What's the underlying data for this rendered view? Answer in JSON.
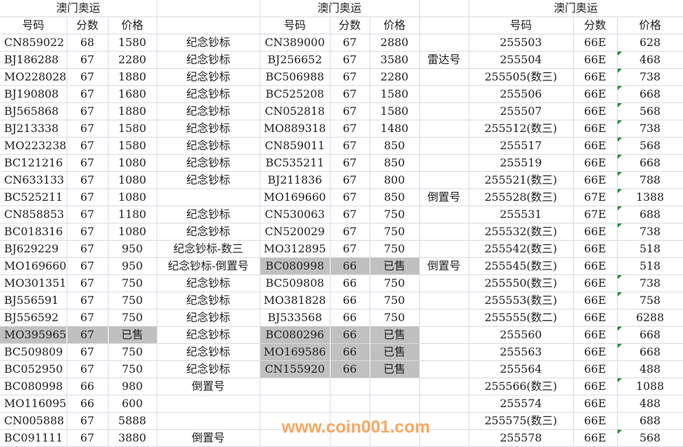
{
  "colors": {
    "sold_fill": "#c0c0c0",
    "gridline": "#d5dae4",
    "text_flag": "#1e8c2a",
    "watermark": "#f5963c"
  },
  "titles": [
    "澳门奥运",
    "澳门奥运",
    "澳门奥运"
  ],
  "headers": [
    "号码",
    "分数",
    "价格",
    "",
    "号码",
    "分数",
    "价格",
    "",
    "号码",
    "分数",
    "价格"
  ],
  "rows": [
    {
      "cells": [
        "CN859022",
        "68",
        "1580",
        "纪念钞标",
        "CN389000",
        "67",
        "2880",
        "",
        "255503",
        "66E",
        "628"
      ],
      "gray": [],
      "flag": false
    },
    {
      "cells": [
        "BJ186288",
        "67",
        "2280",
        "纪念钞标",
        "BJ256652",
        "67",
        "3580",
        "雷达号",
        "255504",
        "66E",
        "468"
      ],
      "gray": [],
      "flag": true
    },
    {
      "cells": [
        "MO228028",
        "67",
        "1880",
        "纪念钞标",
        "BC506988",
        "67",
        "2280",
        "",
        "255505(数三)",
        "66E",
        "738"
      ],
      "gray": [],
      "flag": true
    },
    {
      "cells": [
        "BJ190808",
        "67",
        "1680",
        "纪念钞标",
        "BC525208",
        "67",
        "1580",
        "",
        "255506",
        "66E",
        "668"
      ],
      "gray": [],
      "flag": true
    },
    {
      "cells": [
        "BJ565868",
        "67",
        "1880",
        "纪念钞标",
        "CN052818",
        "67",
        "1580",
        "",
        "255507",
        "66E",
        "568"
      ],
      "gray": [],
      "flag": true
    },
    {
      "cells": [
        "BJ213338",
        "67",
        "1580",
        "纪念钞标",
        "MO889318",
        "67",
        "1480",
        "",
        "255512(数三)",
        "66E",
        "738"
      ],
      "gray": [],
      "flag": true
    },
    {
      "cells": [
        "MO223238",
        "67",
        "1580",
        "纪念钞标",
        "CN859011",
        "67",
        "850",
        "",
        "255517",
        "66E",
        "568"
      ],
      "gray": [],
      "flag": true
    },
    {
      "cells": [
        "BC121216",
        "67",
        "1080",
        "纪念钞标",
        "BC535211",
        "67",
        "850",
        "",
        "255519",
        "66E",
        "668"
      ],
      "gray": [],
      "flag": true
    },
    {
      "cells": [
        "CN633133",
        "67",
        "1080",
        "纪念钞标",
        "BJ211836",
        "67",
        "800",
        "",
        "255521(数三)",
        "66E",
        "788"
      ],
      "gray": [],
      "flag": true
    },
    {
      "cells": [
        "BC525211",
        "67",
        "1080",
        "",
        "MO169660",
        "67",
        "850",
        "倒置号",
        "255528(数三)",
        "67E",
        "1388"
      ],
      "gray": [],
      "flag": true
    },
    {
      "cells": [
        "CN858853",
        "67",
        "1180",
        "纪念钞标",
        "CN530063",
        "67",
        "750",
        "",
        "255531",
        "67E",
        "688"
      ],
      "gray": [],
      "flag": true
    },
    {
      "cells": [
        "BC018316",
        "67",
        "1080",
        "纪念钞标",
        "CN520029",
        "67",
        "750",
        "",
        "255532(数三)",
        "66E",
        "738"
      ],
      "gray": [],
      "flag": true
    },
    {
      "cells": [
        "BJ629229",
        "67",
        "950",
        "纪念钞标-数三",
        "MO312895",
        "67",
        "750",
        "",
        "255542(数三)",
        "66E",
        "518"
      ],
      "gray": [],
      "flag": false
    },
    {
      "cells": [
        "MO169660",
        "67",
        "950",
        "纪念钞标-倒置号",
        "BC080998",
        "66",
        "已售",
        "倒置号",
        "255545(数三)",
        "66E",
        "518"
      ],
      "gray": [
        4,
        5,
        6
      ],
      "flag": false
    },
    {
      "cells": [
        "MO301351",
        "67",
        "750",
        "纪念钞标",
        "BC509808",
        "66",
        "750",
        "",
        "255550(数三)",
        "66E",
        "738"
      ],
      "gray": [],
      "flag": true
    },
    {
      "cells": [
        "BJ556591",
        "67",
        "750",
        "纪念钞标",
        "MO381828",
        "66",
        "750",
        "",
        "255553(数三)",
        "66E",
        "758"
      ],
      "gray": [],
      "flag": true
    },
    {
      "cells": [
        "BJ556592",
        "67",
        "750",
        "纪念钞标",
        "BJ533568",
        "66",
        "750",
        "",
        "255555(数二)",
        "66E",
        "6288"
      ],
      "gray": [],
      "flag": false
    },
    {
      "cells": [
        "MO395965",
        "67",
        "已售",
        "纪念钞标",
        "BC080296",
        "66",
        "已售",
        "",
        "255560",
        "66E",
        "668"
      ],
      "gray": [
        0,
        1,
        2,
        4,
        5,
        6
      ],
      "flag": true
    },
    {
      "cells": [
        "BC509809",
        "67",
        "750",
        "纪念钞标",
        "MO169586",
        "66",
        "已售",
        "",
        "255563",
        "66E",
        "668"
      ],
      "gray": [
        4,
        5,
        6
      ],
      "flag": true
    },
    {
      "cells": [
        "BC052950",
        "67",
        "750",
        "纪念钞标",
        "CN155920",
        "66",
        "已售",
        "",
        "255564",
        "66E",
        "488"
      ],
      "gray": [
        4,
        5,
        6
      ],
      "flag": false
    },
    {
      "cells": [
        "BC080998",
        "66",
        "980",
        "倒置号",
        "",
        "",
        "",
        "",
        "255566(数三)",
        "66E",
        "1088"
      ],
      "gray": [],
      "flag": true
    },
    {
      "cells": [
        "MO116095",
        "66",
        "600",
        "",
        "",
        "",
        "",
        "",
        "255574",
        "66E",
        "488"
      ],
      "gray": [],
      "flag": false
    },
    {
      "cells": [
        "CN005888",
        "67",
        "5888",
        "",
        "",
        "",
        "",
        "",
        "255575(数三)",
        "66E",
        "688"
      ],
      "gray": [],
      "flag": false
    },
    {
      "cells": [
        "BC091111",
        "67",
        "3880",
        "倒置号",
        "",
        "",
        "",
        "",
        "255578",
        "66E",
        "568"
      ],
      "gray": [],
      "flag": true
    }
  ],
  "watermark": "www.coin001.com"
}
